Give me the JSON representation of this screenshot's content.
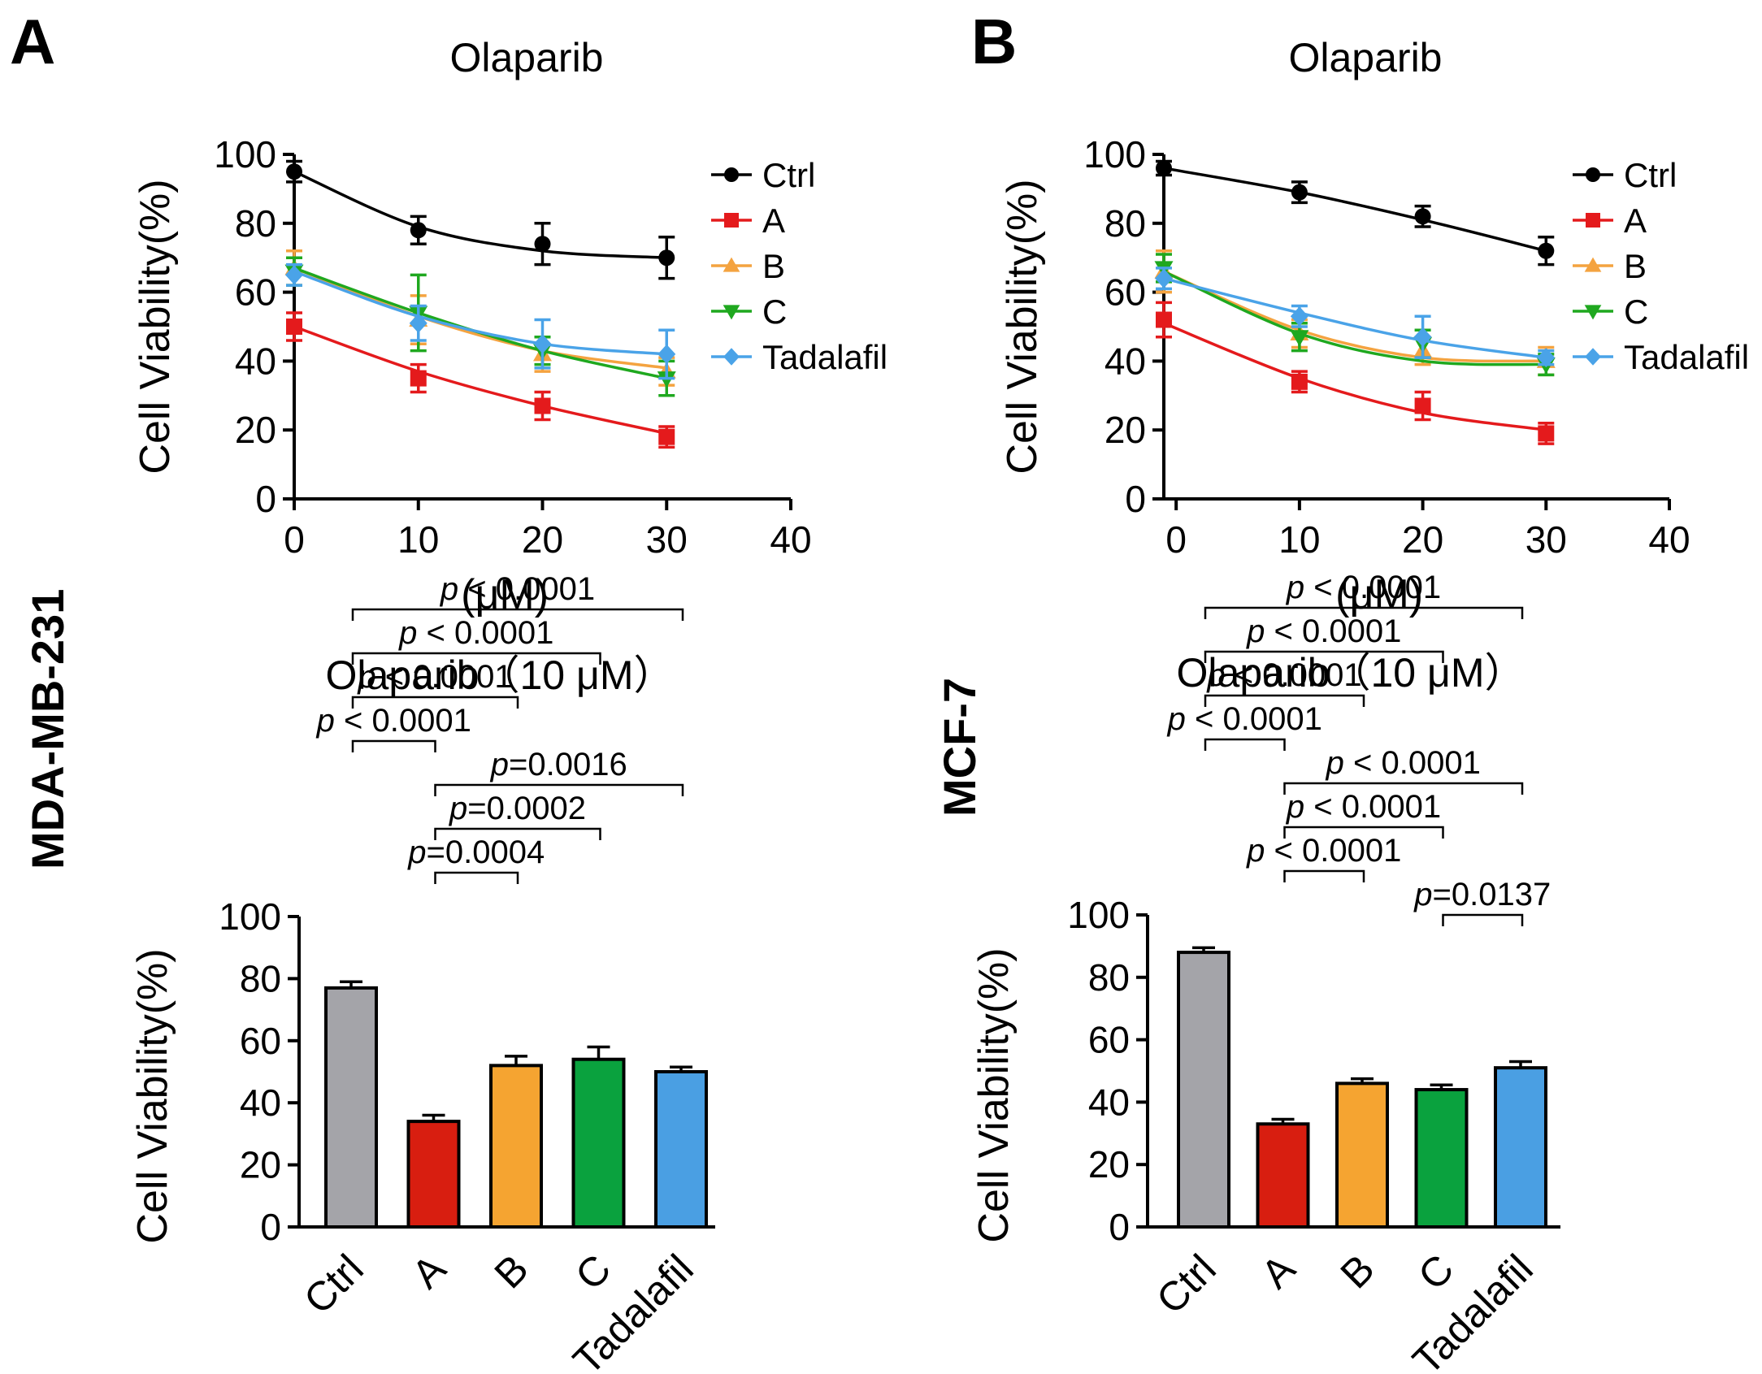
{
  "panels": {
    "A": {
      "letter": "A",
      "cell_line": "MDA-MB-231"
    },
    "B": {
      "letter": "B",
      "cell_line": "MCF-7"
    }
  },
  "chart_data": [
    {
      "id": "line-A",
      "type": "line",
      "title": "Olaparib",
      "xlabel": "(μM)",
      "ylabel": "Cell Viability(%)",
      "xlim": [
        0,
        40
      ],
      "ylim": [
        0,
        100
      ],
      "x_ticks": [
        0,
        10,
        20,
        30,
        40
      ],
      "y_ticks": [
        0,
        20,
        40,
        60,
        80,
        100
      ],
      "x": [
        0,
        10,
        20,
        30
      ],
      "series": [
        {
          "name": "Ctrl",
          "color": "#000000",
          "marker": "circle",
          "values": [
            95,
            78,
            74,
            70
          ],
          "errors": [
            3,
            4,
            6,
            6
          ],
          "fit": [
            95,
            79,
            72,
            70
          ]
        },
        {
          "name": "A",
          "color": "#e41a1c",
          "marker": "square",
          "values": [
            50,
            35,
            27,
            18
          ],
          "errors": [
            4,
            4,
            4,
            3
          ],
          "fit": [
            50,
            37,
            27,
            19
          ]
        },
        {
          "name": "B",
          "color": "#f4a340",
          "marker": "triangle-up",
          "values": [
            67,
            52,
            42,
            37
          ],
          "errors": [
            5,
            7,
            5,
            4
          ],
          "fit": [
            67,
            53,
            43,
            38
          ]
        },
        {
          "name": "C",
          "color": "#1fa81f",
          "marker": "triangle-down",
          "values": [
            66,
            54,
            43,
            35
          ],
          "errors": [
            4,
            11,
            4,
            5
          ],
          "fit": [
            67,
            54,
            43,
            35
          ]
        },
        {
          "name": "Tadalafil",
          "color": "#4aa3e8",
          "marker": "diamond",
          "values": [
            65,
            51,
            45,
            42
          ],
          "errors": [
            3,
            5,
            7,
            7
          ],
          "fit": [
            66,
            53,
            45,
            42
          ]
        }
      ]
    },
    {
      "id": "line-B",
      "type": "line",
      "title": "Olaparib",
      "xlabel": "(μM)",
      "ylabel": "Cell Viability(%)",
      "xlim": [
        -1,
        40
      ],
      "ylim": [
        0,
        100
      ],
      "x_ticks": [
        0,
        10,
        20,
        30,
        40
      ],
      "y_ticks": [
        0,
        20,
        40,
        60,
        80,
        100
      ],
      "x": [
        -1,
        10,
        20,
        30
      ],
      "series": [
        {
          "name": "Ctrl",
          "color": "#000000",
          "marker": "circle",
          "values": [
            96,
            89,
            82,
            72
          ],
          "errors": [
            2,
            3,
            3,
            4
          ],
          "fit": [
            96,
            89,
            81,
            72
          ]
        },
        {
          "name": "A",
          "color": "#e41a1c",
          "marker": "square",
          "values": [
            52,
            34,
            27,
            19
          ],
          "errors": [
            5,
            3,
            4,
            3
          ],
          "fit": [
            51,
            35,
            25,
            20
          ]
        },
        {
          "name": "B",
          "color": "#f4a340",
          "marker": "triangle-up",
          "values": [
            66,
            48,
            43,
            40
          ],
          "errors": [
            6,
            4,
            4,
            4
          ],
          "fit": [
            66,
            49,
            41,
            40
          ]
        },
        {
          "name": "C",
          "color": "#1fa81f",
          "marker": "triangle-down",
          "values": [
            67,
            47,
            45,
            39
          ],
          "errors": [
            4,
            4,
            4,
            3
          ],
          "fit": [
            66,
            48,
            40,
            39
          ]
        },
        {
          "name": "Tadalafil",
          "color": "#4aa3e8",
          "marker": "diamond",
          "values": [
            64,
            53,
            47,
            41
          ],
          "errors": [
            3,
            3,
            6,
            2
          ],
          "fit": [
            64,
            54,
            46,
            41
          ]
        }
      ]
    },
    {
      "id": "bar-A",
      "type": "bar",
      "title": "Olaparib（10 μM）",
      "xlabel": "",
      "ylabel": "Cell Viability(%)",
      "ylim": [
        0,
        100
      ],
      "y_ticks": [
        0,
        20,
        40,
        60,
        80,
        100
      ],
      "categories": [
        "Ctrl",
        "A",
        "B",
        "C",
        "Tadalafil"
      ],
      "values": [
        77,
        34,
        52,
        54,
        50
      ],
      "errors": [
        2,
        2,
        3,
        4,
        1.5
      ],
      "colors": [
        "#a4a4a9",
        "#d81e10",
        "#f5a431",
        "#0aa23e",
        "#4a9fe3"
      ],
      "comparisons": [
        {
          "from": 0,
          "to": 4,
          "italic": "p",
          "text": " < 0.0001",
          "level": 9
        },
        {
          "from": 0,
          "to": 3,
          "italic": "p",
          "text": " < 0.0001",
          "level": 8
        },
        {
          "from": 0,
          "to": 2,
          "italic": "p",
          "text": " < 0.0001",
          "level": 7
        },
        {
          "from": 0,
          "to": 1,
          "italic": "p",
          "text": " < 0.0001",
          "level": 6
        },
        {
          "from": 1,
          "to": 4,
          "italic": "p",
          "text": "=0.0016",
          "level": 5
        },
        {
          "from": 1,
          "to": 3,
          "italic": "p",
          "text": "=0.0002",
          "level": 4
        },
        {
          "from": 1,
          "to": 2,
          "italic": "p",
          "text": "=0.0004",
          "level": 3
        }
      ]
    },
    {
      "id": "bar-B",
      "type": "bar",
      "title": "Olaparib（10 μM）",
      "xlabel": "",
      "ylabel": "Cell Viability(%)",
      "ylim": [
        0,
        100
      ],
      "y_ticks": [
        0,
        20,
        40,
        60,
        80,
        100
      ],
      "categories": [
        "Ctrl",
        "A",
        "B",
        "C",
        "Tadalafil"
      ],
      "values": [
        88,
        33,
        46,
        44,
        51
      ],
      "errors": [
        1.5,
        1.5,
        1.5,
        1.5,
        2
      ],
      "colors": [
        "#a4a4a9",
        "#d81e10",
        "#f5a431",
        "#0aa23e",
        "#4a9fe3"
      ],
      "comparisons": [
        {
          "from": 0,
          "to": 4,
          "italic": "p",
          "text": " < 0.0001",
          "level": 9
        },
        {
          "from": 0,
          "to": 3,
          "italic": "p",
          "text": " < 0.0001",
          "level": 8
        },
        {
          "from": 0,
          "to": 2,
          "italic": "p",
          "text": " < 0.0001",
          "level": 7
        },
        {
          "from": 0,
          "to": 1,
          "italic": "p",
          "text": " < 0.0001",
          "level": 6
        },
        {
          "from": 1,
          "to": 4,
          "italic": "p",
          "text": " < 0.0001",
          "level": 5
        },
        {
          "from": 1,
          "to": 3,
          "italic": "p",
          "text": " < 0.0001",
          "level": 4
        },
        {
          "from": 1,
          "to": 2,
          "italic": "p",
          "text": " < 0.0001",
          "level": 3
        },
        {
          "from": 3,
          "to": 4,
          "italic": "p",
          "text": "=0.0137",
          "level": 2
        }
      ]
    }
  ]
}
